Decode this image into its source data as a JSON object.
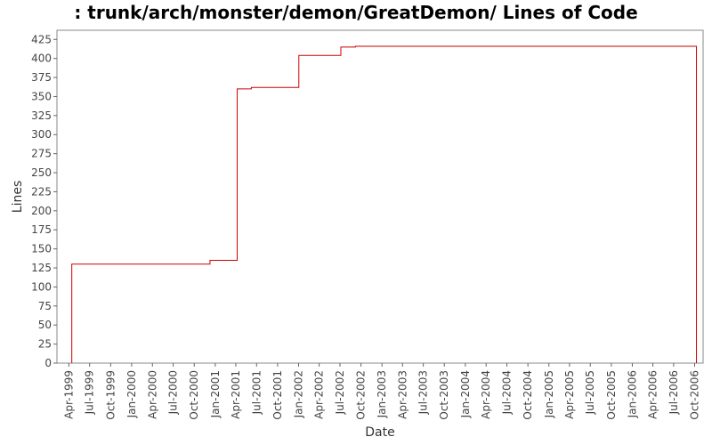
{
  "chart_data": {
    "type": "line",
    "title": ": trunk/arch/monster/demon/GreatDemon/ Lines of Code",
    "xlabel": "Date",
    "ylabel": "Lines",
    "ylim": [
      0,
      437
    ],
    "y_ticks": [
      0,
      25,
      50,
      75,
      100,
      125,
      150,
      175,
      200,
      225,
      250,
      275,
      300,
      325,
      350,
      375,
      400,
      425
    ],
    "x_range": [
      "1999-02-08",
      "2006-11-07"
    ],
    "x_ticks": [
      {
        "date": "1999-04-01",
        "label": "Apr-1999"
      },
      {
        "date": "1999-07-01",
        "label": "Jul-1999"
      },
      {
        "date": "1999-10-01",
        "label": "Oct-1999"
      },
      {
        "date": "2000-01-01",
        "label": "Jan-2000"
      },
      {
        "date": "2000-04-01",
        "label": "Apr-2000"
      },
      {
        "date": "2000-07-01",
        "label": "Jul-2000"
      },
      {
        "date": "2000-10-01",
        "label": "Oct-2000"
      },
      {
        "date": "2001-01-01",
        "label": "Jan-2001"
      },
      {
        "date": "2001-04-01",
        "label": "Apr-2001"
      },
      {
        "date": "2001-07-01",
        "label": "Jul-2001"
      },
      {
        "date": "2001-10-01",
        "label": "Oct-2001"
      },
      {
        "date": "2002-01-01",
        "label": "Jan-2002"
      },
      {
        "date": "2002-04-01",
        "label": "Apr-2002"
      },
      {
        "date": "2002-07-01",
        "label": "Jul-2002"
      },
      {
        "date": "2002-10-01",
        "label": "Oct-2002"
      },
      {
        "date": "2003-01-01",
        "label": "Jan-2003"
      },
      {
        "date": "2003-04-01",
        "label": "Apr-2003"
      },
      {
        "date": "2003-07-01",
        "label": "Jul-2003"
      },
      {
        "date": "2003-10-01",
        "label": "Oct-2003"
      },
      {
        "date": "2004-01-01",
        "label": "Jan-2004"
      },
      {
        "date": "2004-04-01",
        "label": "Apr-2004"
      },
      {
        "date": "2004-07-01",
        "label": "Jul-2004"
      },
      {
        "date": "2004-10-01",
        "label": "Oct-2004"
      },
      {
        "date": "2005-01-01",
        "label": "Jan-2005"
      },
      {
        "date": "2005-04-01",
        "label": "Apr-2005"
      },
      {
        "date": "2005-07-01",
        "label": "Jul-2005"
      },
      {
        "date": "2005-10-01",
        "label": "Oct-2005"
      },
      {
        "date": "2006-01-01",
        "label": "Jan-2006"
      },
      {
        "date": "2006-04-01",
        "label": "Apr-2006"
      },
      {
        "date": "2006-07-01",
        "label": "Jul-2006"
      },
      {
        "date": "2006-10-01",
        "label": "Oct-2006"
      }
    ],
    "step": true,
    "grid": false,
    "line_color": "#cc0000",
    "series": [
      {
        "points": [
          {
            "x": "1999-04-14",
            "y": 0
          },
          {
            "x": "1999-04-14",
            "y": 130
          },
          {
            "x": "2000-12-09",
            "y": 135
          },
          {
            "x": "2001-04-07",
            "y": 360
          },
          {
            "x": "2001-06-08",
            "y": 362
          },
          {
            "x": "2002-01-02",
            "y": 404
          },
          {
            "x": "2002-07-05",
            "y": 415
          },
          {
            "x": "2002-09-07",
            "y": 416
          },
          {
            "x": "2006-10-09",
            "y": 416
          },
          {
            "x": "2006-10-09",
            "y": 0
          }
        ]
      }
    ]
  }
}
